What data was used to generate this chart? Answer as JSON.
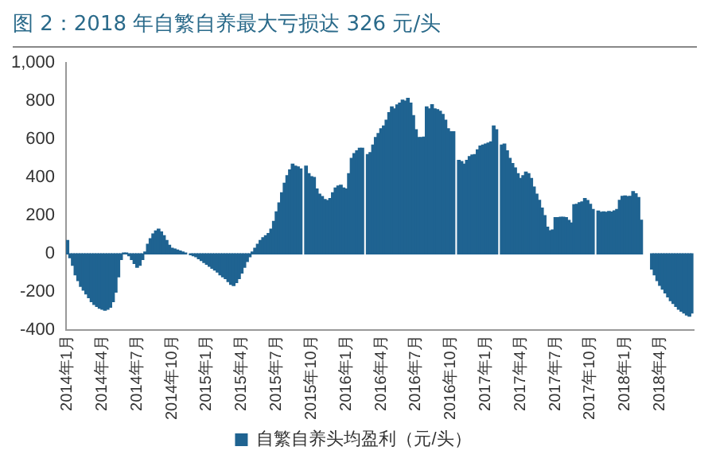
{
  "chart_data": {
    "type": "bar",
    "title": "图 2：2018 年自繁自养最大亏损达 326 元/头",
    "categories": [
      "2014年1月",
      null,
      null,
      null,
      null,
      null,
      null,
      null,
      null,
      null,
      null,
      null,
      null,
      "2014年4月",
      null,
      null,
      null,
      null,
      null,
      null,
      null,
      null,
      null,
      null,
      null,
      null,
      "2014年7月",
      null,
      null,
      null,
      null,
      null,
      null,
      null,
      null,
      null,
      null,
      null,
      null,
      "2014年10月",
      null,
      null,
      null,
      null,
      null,
      null,
      null,
      null,
      null,
      null,
      null,
      null,
      "2015年1月",
      null,
      null,
      null,
      null,
      null,
      null,
      null,
      null,
      null,
      null,
      null,
      null,
      "2015年4月",
      null,
      null,
      null,
      null,
      null,
      null,
      null,
      null,
      null,
      null,
      null,
      null,
      "2015年7月",
      null,
      null,
      null,
      null,
      null,
      null,
      null,
      null,
      null,
      null,
      null,
      null,
      "2015年10月",
      null,
      null,
      null,
      null,
      null,
      null,
      null,
      null,
      null,
      null,
      null,
      null,
      "2016年1月",
      null,
      null,
      null,
      null,
      null,
      null,
      null,
      null,
      null,
      null,
      null,
      null,
      "2016年4月",
      null,
      null,
      null,
      null,
      null,
      null,
      null,
      null,
      null,
      null,
      null,
      null,
      "2016年7月",
      null,
      null,
      null,
      null,
      null,
      null,
      null,
      null,
      null,
      null,
      null,
      null,
      "2016年10月",
      null,
      null,
      null,
      null,
      null,
      null,
      null,
      null,
      null,
      null,
      null,
      null,
      "2017年1月",
      null,
      null,
      null,
      null,
      null,
      null,
      null,
      null,
      null,
      null,
      null,
      null,
      "2017年4月",
      null,
      null,
      null,
      null,
      null,
      null,
      null,
      null,
      null,
      null,
      null,
      null,
      "2017年7月",
      null,
      null,
      null,
      null,
      null,
      null,
      null,
      null,
      null,
      null,
      null,
      null,
      "2017年10月",
      null,
      null,
      null,
      null,
      null,
      null,
      null,
      null,
      null,
      null,
      null,
      null,
      "2018年1月",
      null,
      null,
      null,
      null,
      null,
      null,
      null,
      null,
      null,
      null,
      null,
      null,
      "2018年4月",
      null,
      null,
      null,
      null,
      null,
      null,
      null,
      null,
      null,
      null,
      null,
      null
    ],
    "series": [
      {
        "name": "自繁自养头均盈利（元/头）",
        "color": "#1f6391",
        "values": [
          70,
          -20,
          -60,
          -110,
          -140,
          -170,
          -190,
          -210,
          -230,
          -250,
          -265,
          -275,
          -285,
          -290,
          -295,
          -290,
          -280,
          -250,
          -200,
          -120,
          -30,
          5,
          5,
          -10,
          -30,
          -50,
          -70,
          -60,
          -30,
          10,
          50,
          80,
          105,
          120,
          130,
          115,
          95,
          70,
          45,
          30,
          25,
          20,
          15,
          10,
          5,
          null,
          -5,
          -10,
          -15,
          -25,
          -35,
          -45,
          -55,
          -65,
          -75,
          -85,
          -95,
          -110,
          -120,
          -130,
          -145,
          -160,
          -166,
          -150,
          -130,
          -100,
          -70,
          -40,
          -15,
          10,
          30,
          50,
          70,
          85,
          95,
          107,
          130,
          170,
          220,
          267,
          320,
          370,
          410,
          440,
          470,
          460,
          455,
          445,
          null,
          460,
          420,
          404,
          400,
          340,
          313,
          300,
          285,
          279,
          290,
          320,
          345,
          355,
          360,
          345,
          340,
          420,
          500,
          525,
          540,
          553,
          553,
          null,
          520,
          530,
          570,
          610,
          630,
          655,
          670,
          700,
          740,
          770,
          760,
          780,
          790,
          805,
          800,
          815,
          790,
          724,
          650,
          610,
          610,
          612,
          770,
          760,
          781,
          760,
          755,
          747,
          730,
          700,
          655,
          640,
          640,
          null,
          490,
          484,
          470,
          490,
          510,
          518,
          520,
          545,
          565,
          570,
          575,
          580,
          587,
          670,
          650,
          null,
          570,
          575,
          540,
          500,
          473,
          450,
          420,
          395,
          410,
          428,
          420,
          395,
          350,
          313,
          280,
          240,
          200,
          140,
          121,
          125,
          190,
          190,
          192,
          192,
          190,
          175,
          162,
          258,
          260,
          268,
          272,
          290,
          279,
          260,
          233,
          null,
          224,
          218,
          220,
          218,
          222,
          219,
          225,
          233,
          280,
          301,
          303,
          300,
          301,
          326,
          315,
          295,
          176,
          null,
          null,
          null,
          -80,
          -110,
          -140,
          -165,
          -185,
          -205,
          -225,
          -245,
          -260,
          -275,
          -290,
          -300,
          -310,
          -320,
          -326,
          -310
        ]
      }
    ],
    "ylim": [
      -400,
      1000
    ],
    "yticks": [
      -400,
      -200,
      0,
      200,
      400,
      600,
      800,
      {
        "value": 1000,
        "label": "1,000"
      }
    ],
    "legend": "bottom"
  }
}
